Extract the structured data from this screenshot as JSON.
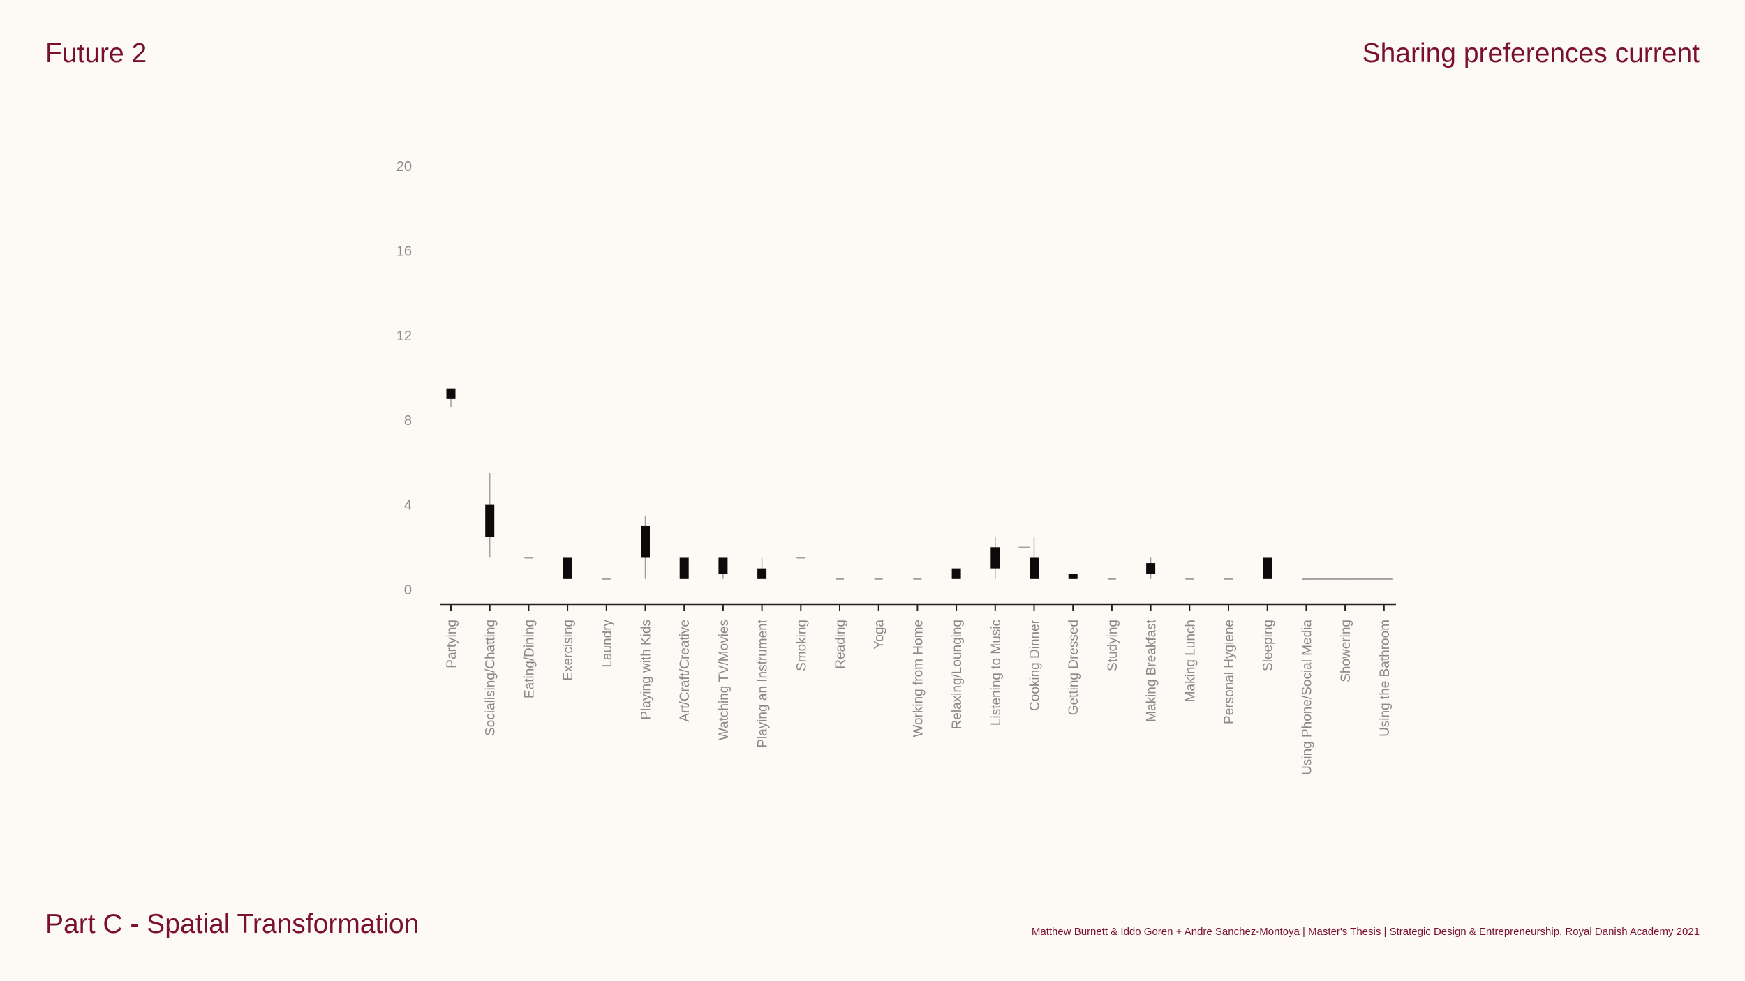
{
  "header": {
    "left_title": "Future 2",
    "right_title": "Sharing preferences current"
  },
  "footer": {
    "section": "Part C - Spatial Transformation",
    "credits": "Matthew Burnett & Iddo Goren +  Andre Sanchez-Montoya | Master's Thesis | Strategic Design & Entrepreneurship, Royal Danish Academy 2021"
  },
  "colors": {
    "accent": "#7a1030",
    "background": "#fdfaf6",
    "box": "#0b0b0b",
    "axis": "#222222",
    "label": "#8a8a8a",
    "whisker": "#a0a0a0"
  },
  "chart_data": {
    "type": "box",
    "title": "",
    "xlabel": "",
    "ylabel": "",
    "ylim": [
      0,
      20
    ],
    "yticks": [
      "0",
      "4",
      "8",
      "12",
      "16",
      "20"
    ],
    "grid": false,
    "categories": [
      "Partying",
      "Socialising/Chatting",
      "Eating/Dining",
      "Exercising",
      "Laundry",
      "Playing with Kids",
      "Art/Craft/Creative",
      "Watching TV/Movies",
      "Playing an Instrument",
      "Smoking",
      "Reading",
      "Yoga",
      "Working from Home",
      "Relaxing/Lounging",
      "Listening to Music",
      "Cooking Dinner",
      "Getting Dressed",
      "Studying",
      "Making Breakfast",
      "Making Lunch",
      "Personal Hygiene",
      "Sleeping",
      "Using Phone/Social Media",
      "Showering",
      "Using the Bathroom"
    ],
    "boxes": [
      {
        "min": 8.6,
        "q1": 9.0,
        "q3": 9.5,
        "max": 9.5
      },
      {
        "min": 1.5,
        "q1": 2.5,
        "q3": 4.0,
        "max": 5.5
      },
      {
        "min": 1.5,
        "q1": 1.5,
        "q3": 1.5,
        "max": 1.5
      },
      {
        "min": 0.5,
        "q1": 0.5,
        "q3": 1.5,
        "max": 1.5
      },
      {
        "min": 0.5,
        "q1": 0.5,
        "q3": 0.5,
        "max": 0.5
      },
      {
        "min": 0.5,
        "q1": 1.5,
        "q3": 3.0,
        "max": 3.5
      },
      {
        "min": 0.5,
        "q1": 0.5,
        "q3": 1.5,
        "max": 1.5
      },
      {
        "min": 0.5,
        "q1": 0.75,
        "q3": 1.5,
        "max": 1.5
      },
      {
        "min": 0.5,
        "q1": 0.5,
        "q3": 1.0,
        "max": 1.5
      },
      {
        "min": 1.5,
        "q1": 1.5,
        "q3": 1.5,
        "max": 1.5
      },
      {
        "min": 0.5,
        "q1": 0.5,
        "q3": 0.5,
        "max": 0.5
      },
      {
        "min": 0.5,
        "q1": 0.5,
        "q3": 0.5,
        "max": 0.5
      },
      {
        "min": 0.5,
        "q1": 0.5,
        "q3": 0.5,
        "max": 0.5
      },
      {
        "min": 0.5,
        "q1": 0.5,
        "q3": 1.0,
        "max": 1.0
      },
      {
        "min": 0.5,
        "q1": 1.0,
        "q3": 2.0,
        "max": 2.5
      },
      {
        "min": 0.5,
        "q1": 0.5,
        "q3": 1.5,
        "max": 2.5,
        "mean": 2.0
      },
      {
        "min": 0.5,
        "q1": 0.5,
        "q3": 0.75,
        "max": 0.75
      },
      {
        "min": 0.5,
        "q1": 0.5,
        "q3": 0.5,
        "max": 0.5
      },
      {
        "min": 0.5,
        "q1": 0.75,
        "q3": 1.25,
        "max": 1.5
      },
      {
        "min": 0.5,
        "q1": 0.5,
        "q3": 0.5,
        "max": 0.5
      },
      {
        "min": 0.5,
        "q1": 0.5,
        "q3": 0.5,
        "max": 0.5
      },
      {
        "min": 0.5,
        "q1": 0.5,
        "q3": 1.5,
        "max": 1.5
      },
      {
        "min": 0.5,
        "q1": 0.5,
        "q3": 0.5,
        "max": 0.5
      },
      {
        "min": 0.5,
        "q1": 0.5,
        "q3": 0.5,
        "max": 0.5
      },
      {
        "min": 0.5,
        "q1": 0.5,
        "q3": 0.5,
        "max": 0.5
      }
    ]
  }
}
